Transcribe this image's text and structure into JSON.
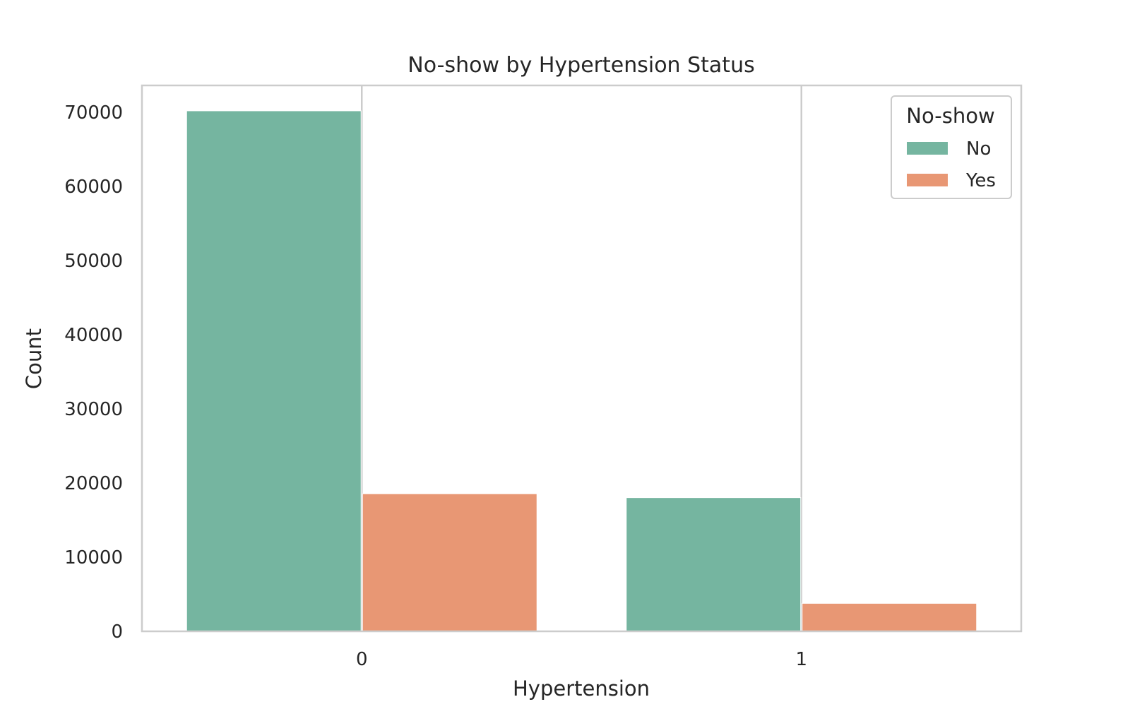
{
  "chart_data": {
    "type": "bar",
    "title": "No-show by Hypertension Status",
    "xlabel": "Hypertension",
    "ylabel": "Count",
    "categories": [
      "0",
      "1"
    ],
    "series": [
      {
        "name": "No",
        "values": [
          70179,
          18029
        ],
        "color": "#75b5a0"
      },
      {
        "name": "Yes",
        "values": [
          18547,
          3772
        ],
        "color": "#e89774"
      }
    ],
    "ylim": [
      0,
      73600
    ],
    "yticks": [
      0,
      10000,
      20000,
      30000,
      40000,
      50000,
      60000,
      70000
    ],
    "grid": "vertical-only",
    "legend": {
      "title": "No-show",
      "placement": "top-right"
    }
  }
}
